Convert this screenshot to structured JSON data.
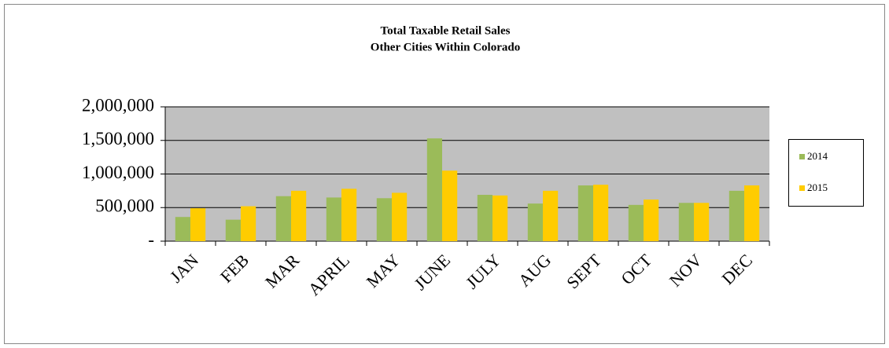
{
  "chart_data": {
    "type": "bar",
    "title": "Total Taxable Retail Sales",
    "subtitle": "Other Cities Within Colorado",
    "categories": [
      "JAN",
      "FEB",
      "MAR",
      "APRIL",
      "MAY",
      "JUNE",
      "JULY",
      "AUG",
      "SEPT",
      "OCT",
      "NOV",
      "DEC"
    ],
    "series": [
      {
        "name": "2014",
        "color": "#9bbb59",
        "values": [
          360000,
          320000,
          670000,
          650000,
          640000,
          1530000,
          690000,
          560000,
          830000,
          540000,
          570000,
          750000
        ]
      },
      {
        "name": "2015",
        "color": "#ffcc00",
        "values": [
          490000,
          520000,
          750000,
          780000,
          720000,
          1050000,
          680000,
          750000,
          840000,
          620000,
          570000,
          830000
        ]
      }
    ],
    "ylim": [
      0,
      2000000
    ],
    "yticks": [
      {
        "value": 0,
        "label": "-"
      },
      {
        "value": 500000,
        "label": "500,000"
      },
      {
        "value": 1000000,
        "label": "1,000,000"
      },
      {
        "value": 1500000,
        "label": "1,500,000"
      },
      {
        "value": 2000000,
        "label": "2,000,000"
      }
    ],
    "grid": true,
    "plot_background": "#c0c0c0",
    "legend_position": "right"
  }
}
